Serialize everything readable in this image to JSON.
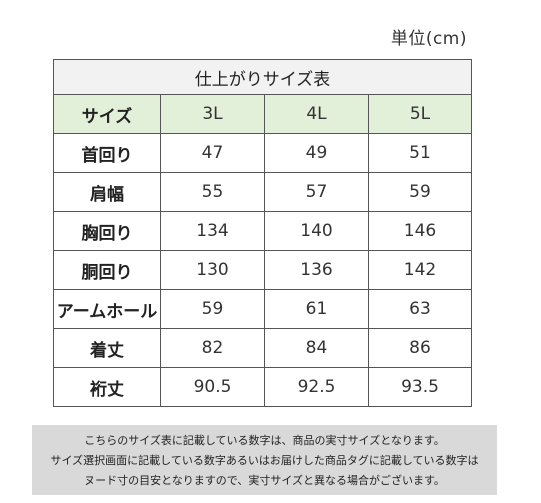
{
  "unit_label": "単位(cm)",
  "table": {
    "caption": "仕上がりサイズ表",
    "header": {
      "label": "サイズ",
      "sizes": [
        "3L",
        "4L",
        "5L"
      ]
    },
    "rows": [
      {
        "label": "首回り",
        "values": [
          "47",
          "49",
          "51"
        ]
      },
      {
        "label": "肩幅",
        "values": [
          "55",
          "57",
          "59"
        ]
      },
      {
        "label": "胸回り",
        "values": [
          "134",
          "140",
          "146"
        ]
      },
      {
        "label": "胴回り",
        "values": [
          "130",
          "136",
          "142"
        ]
      },
      {
        "label": "アームホール",
        "values": [
          "59",
          "61",
          "63"
        ]
      },
      {
        "label": "着丈",
        "values": [
          "82",
          "84",
          "86"
        ]
      },
      {
        "label": "裄丈",
        "values": [
          "90.5",
          "92.5",
          "93.5"
        ]
      }
    ]
  },
  "note": {
    "lines": [
      "こちらのサイズ表に記載している数字は、商品の実寸サイズとなります。",
      "サイズ選択画面に記載している数字あるいはお届けした商品タグに記載している数字は",
      "ヌード寸の目安となりますので、実寸サイズと異なる場合がございます。"
    ]
  },
  "colors": {
    "caption_bg": "#f2f2f2",
    "header_bg": "#e2efd9",
    "note_bg": "#d9d9d9"
  }
}
